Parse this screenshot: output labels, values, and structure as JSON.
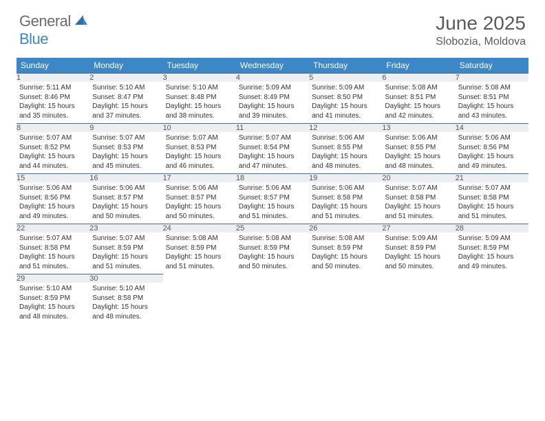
{
  "logo": {
    "text1": "General",
    "text2": "Blue"
  },
  "header": {
    "month": "June 2025",
    "location": "Slobozia, Moldova"
  },
  "colors": {
    "header_bg": "#3b87c8",
    "header_text": "#ffffff",
    "daynum_bg": "#eceeef",
    "border": "#3b6fa0",
    "logo_gray": "#6b6b6b",
    "logo_blue": "#3b87c8"
  },
  "dayNames": [
    "Sunday",
    "Monday",
    "Tuesday",
    "Wednesday",
    "Thursday",
    "Friday",
    "Saturday"
  ],
  "days": [
    {
      "n": 1,
      "sr": "5:11 AM",
      "ss": "8:46 PM",
      "dl": "15 hours and 35 minutes."
    },
    {
      "n": 2,
      "sr": "5:10 AM",
      "ss": "8:47 PM",
      "dl": "15 hours and 37 minutes."
    },
    {
      "n": 3,
      "sr": "5:10 AM",
      "ss": "8:48 PM",
      "dl": "15 hours and 38 minutes."
    },
    {
      "n": 4,
      "sr": "5:09 AM",
      "ss": "8:49 PM",
      "dl": "15 hours and 39 minutes."
    },
    {
      "n": 5,
      "sr": "5:09 AM",
      "ss": "8:50 PM",
      "dl": "15 hours and 41 minutes."
    },
    {
      "n": 6,
      "sr": "5:08 AM",
      "ss": "8:51 PM",
      "dl": "15 hours and 42 minutes."
    },
    {
      "n": 7,
      "sr": "5:08 AM",
      "ss": "8:51 PM",
      "dl": "15 hours and 43 minutes."
    },
    {
      "n": 8,
      "sr": "5:07 AM",
      "ss": "8:52 PM",
      "dl": "15 hours and 44 minutes."
    },
    {
      "n": 9,
      "sr": "5:07 AM",
      "ss": "8:53 PM",
      "dl": "15 hours and 45 minutes."
    },
    {
      "n": 10,
      "sr": "5:07 AM",
      "ss": "8:53 PM",
      "dl": "15 hours and 46 minutes."
    },
    {
      "n": 11,
      "sr": "5:07 AM",
      "ss": "8:54 PM",
      "dl": "15 hours and 47 minutes."
    },
    {
      "n": 12,
      "sr": "5:06 AM",
      "ss": "8:55 PM",
      "dl": "15 hours and 48 minutes."
    },
    {
      "n": 13,
      "sr": "5:06 AM",
      "ss": "8:55 PM",
      "dl": "15 hours and 48 minutes."
    },
    {
      "n": 14,
      "sr": "5:06 AM",
      "ss": "8:56 PM",
      "dl": "15 hours and 49 minutes."
    },
    {
      "n": 15,
      "sr": "5:06 AM",
      "ss": "8:56 PM",
      "dl": "15 hours and 49 minutes."
    },
    {
      "n": 16,
      "sr": "5:06 AM",
      "ss": "8:57 PM",
      "dl": "15 hours and 50 minutes."
    },
    {
      "n": 17,
      "sr": "5:06 AM",
      "ss": "8:57 PM",
      "dl": "15 hours and 50 minutes."
    },
    {
      "n": 18,
      "sr": "5:06 AM",
      "ss": "8:57 PM",
      "dl": "15 hours and 51 minutes."
    },
    {
      "n": 19,
      "sr": "5:06 AM",
      "ss": "8:58 PM",
      "dl": "15 hours and 51 minutes."
    },
    {
      "n": 20,
      "sr": "5:07 AM",
      "ss": "8:58 PM",
      "dl": "15 hours and 51 minutes."
    },
    {
      "n": 21,
      "sr": "5:07 AM",
      "ss": "8:58 PM",
      "dl": "15 hours and 51 minutes."
    },
    {
      "n": 22,
      "sr": "5:07 AM",
      "ss": "8:58 PM",
      "dl": "15 hours and 51 minutes."
    },
    {
      "n": 23,
      "sr": "5:07 AM",
      "ss": "8:59 PM",
      "dl": "15 hours and 51 minutes."
    },
    {
      "n": 24,
      "sr": "5:08 AM",
      "ss": "8:59 PM",
      "dl": "15 hours and 51 minutes."
    },
    {
      "n": 25,
      "sr": "5:08 AM",
      "ss": "8:59 PM",
      "dl": "15 hours and 50 minutes."
    },
    {
      "n": 26,
      "sr": "5:08 AM",
      "ss": "8:59 PM",
      "dl": "15 hours and 50 minutes."
    },
    {
      "n": 27,
      "sr": "5:09 AM",
      "ss": "8:59 PM",
      "dl": "15 hours and 50 minutes."
    },
    {
      "n": 28,
      "sr": "5:09 AM",
      "ss": "8:59 PM",
      "dl": "15 hours and 49 minutes."
    },
    {
      "n": 29,
      "sr": "5:10 AM",
      "ss": "8:59 PM",
      "dl": "15 hours and 48 minutes."
    },
    {
      "n": 30,
      "sr": "5:10 AM",
      "ss": "8:58 PM",
      "dl": "15 hours and 48 minutes."
    }
  ],
  "labels": {
    "sunrise": "Sunrise:",
    "sunset": "Sunset:",
    "daylight": "Daylight:"
  }
}
